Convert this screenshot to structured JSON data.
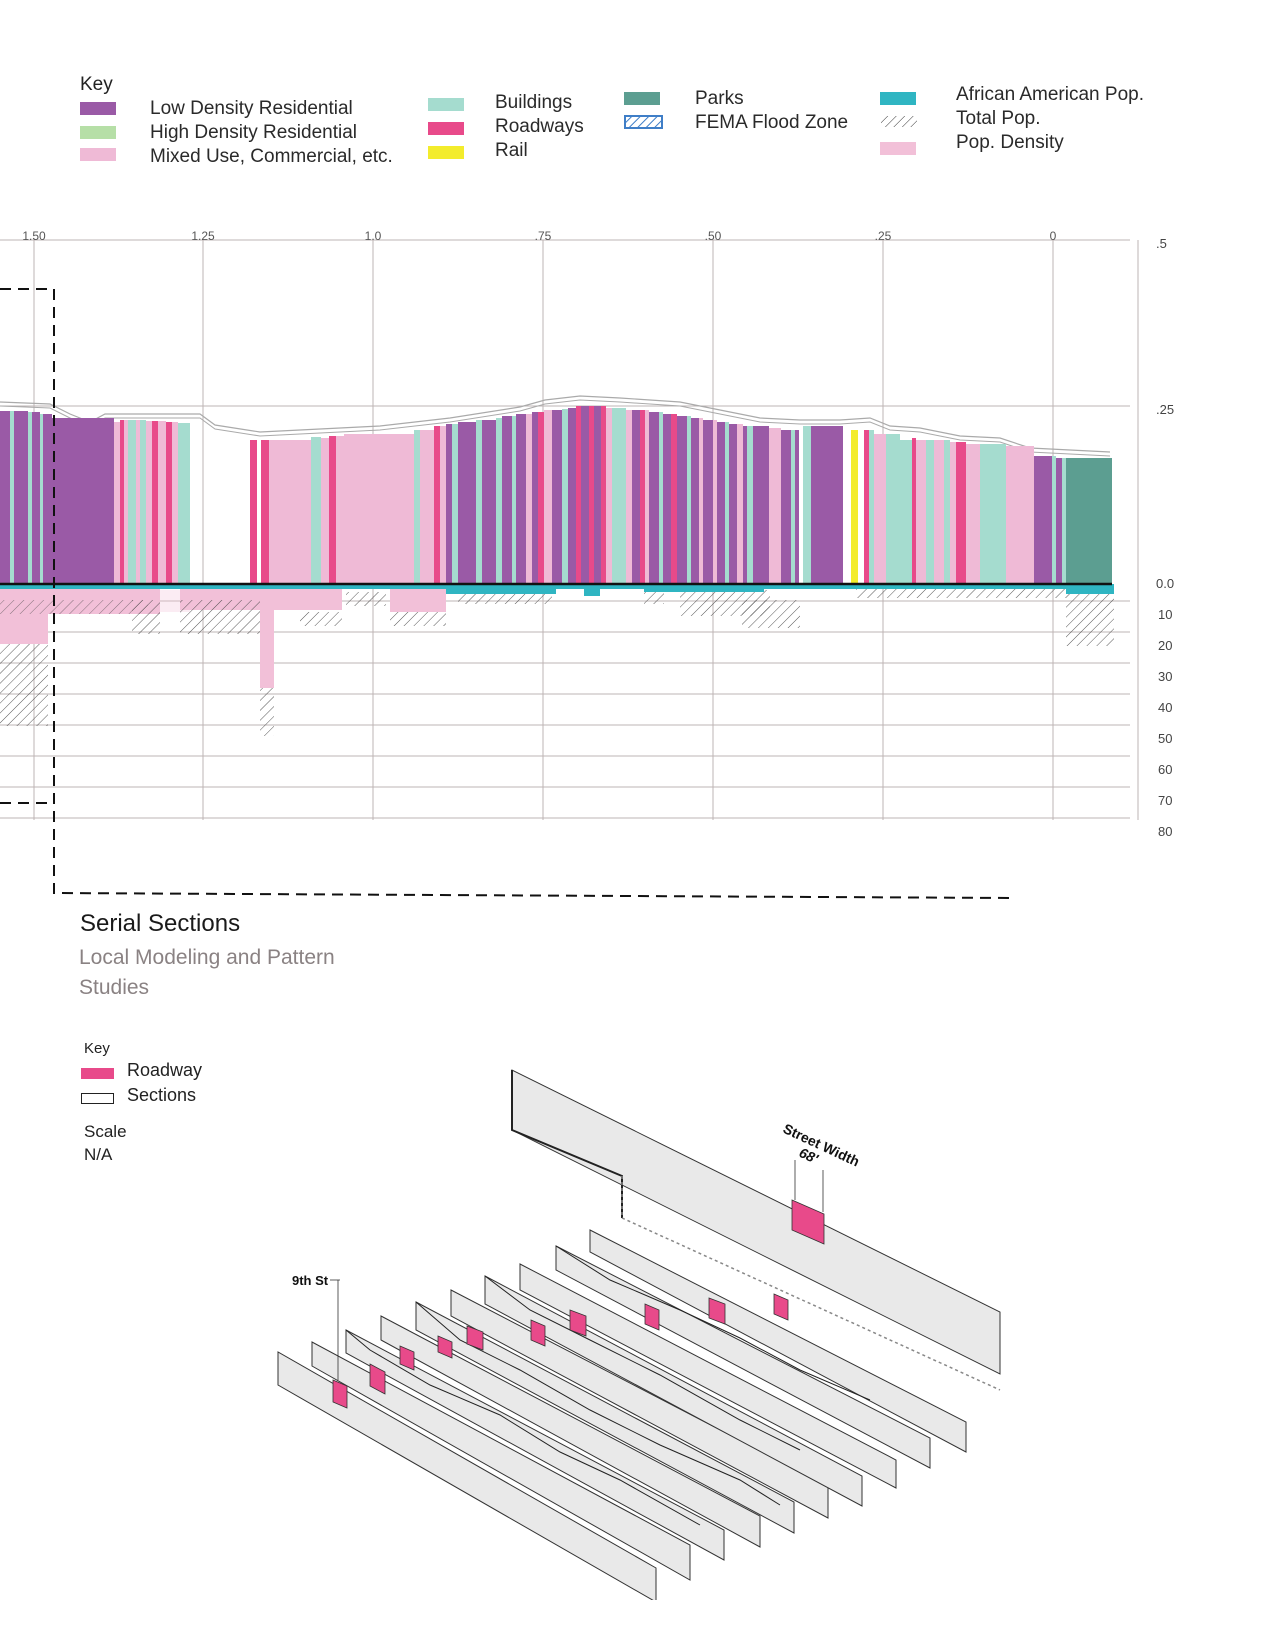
{
  "colors": {
    "low_density": "#9a5aa6",
    "high_density": "#b6dfa7",
    "mixed_use": "#efbad6",
    "buildings": "#a5dccf",
    "roadways": "#e84a8a",
    "rail": "#f3ec2c",
    "parks": "#5c9e91",
    "fema": "#3f7ec7",
    "african_american": "#2fb5c2",
    "pop_density": "#f2c0d8",
    "section_fill": "#e9e9e9"
  },
  "legend": {
    "title": "Key",
    "items": [
      {
        "label": "Low Density Residential",
        "icon": "swatch-low-density"
      },
      {
        "label": "High Density Residential",
        "icon": "swatch-high-density"
      },
      {
        "label": "Mixed Use, Commercial, etc.",
        "icon": "swatch-mixed-use"
      },
      {
        "label": "Buildings",
        "icon": "swatch-buildings"
      },
      {
        "label": "Roadways",
        "icon": "swatch-roadways"
      },
      {
        "label": "Rail",
        "icon": "swatch-rail"
      },
      {
        "label": "Parks",
        "icon": "swatch-parks"
      },
      {
        "label": "FEMA Flood Zone",
        "icon": "swatch-fema-hatch"
      },
      {
        "label": "African American Pop.",
        "icon": "swatch-african-american"
      },
      {
        "label": "Total Pop.",
        "icon": "swatch-total-hatch"
      },
      {
        "label": "Pop. Density",
        "icon": "swatch-pop-density"
      }
    ]
  },
  "chart": {
    "x_ticks": [
      "1.50",
      "1.25",
      "1.0",
      ".75",
      ".50",
      ".25",
      "0"
    ],
    "y_top_labels": [
      ".5",
      ".25",
      "0.0"
    ],
    "y_bottom_labels": [
      "10",
      "20",
      "30",
      "40",
      "50",
      "60",
      "70",
      "80"
    ]
  },
  "serial": {
    "title": "Serial Sections",
    "subtitle_line1": "Local Modeling and Pattern",
    "subtitle_line2": "Studies",
    "key_title": "Key",
    "key_roadway": "Roadway",
    "key_sections": "Sections",
    "scale_label": "Scale",
    "scale_value": "N/A",
    "street_width_label": "Street Width",
    "street_width_value": "68'",
    "ninth_st_label": "9th St"
  }
}
